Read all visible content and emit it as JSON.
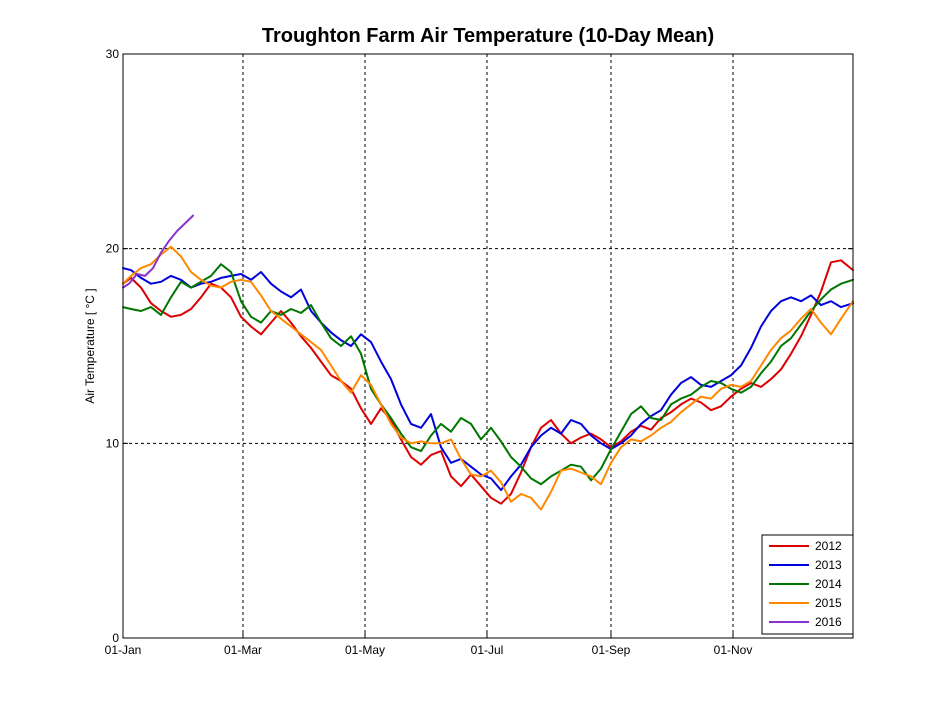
{
  "chart_data": {
    "type": "line",
    "title": "Troughton Farm Air Temperature (10-Day Mean)",
    "xlabel": "",
    "ylabel": "Air Temperature  [ °C ]",
    "ylim": [
      0,
      30
    ],
    "yticks": [
      0,
      10,
      20,
      30
    ],
    "xlim_day": [
      1,
      366
    ],
    "xticks": [
      {
        "day": 1,
        "label": "01-Jan"
      },
      {
        "day": 61,
        "label": "01-Mar"
      },
      {
        "day": 122,
        "label": "01-May"
      },
      {
        "day": 183,
        "label": "01-Jul"
      },
      {
        "day": 245,
        "label": "01-Sep"
      },
      {
        "day": 306,
        "label": "01-Nov"
      }
    ],
    "grid": true,
    "legend_position": "bottom-right",
    "series": [
      {
        "name": "2012",
        "color": "#dd0000",
        "day": [
          1,
          5,
          10,
          15,
          20,
          25,
          30,
          35,
          40,
          45,
          50,
          55,
          60,
          65,
          70,
          75,
          80,
          85,
          90,
          95,
          100,
          105,
          110,
          115,
          120,
          125,
          130,
          135,
          140,
          145,
          150,
          155,
          160,
          165,
          170,
          175,
          180,
          185,
          190,
          195,
          200,
          205,
          210,
          215,
          220,
          225,
          230,
          235,
          240,
          245,
          250,
          255,
          260,
          265,
          270,
          275,
          280,
          285,
          290,
          295,
          300,
          305,
          310,
          315,
          320,
          325,
          330,
          335,
          340,
          345,
          350,
          355,
          360,
          366
        ],
        "temp": [
          18.2,
          18.5,
          18.0,
          17.2,
          16.8,
          16.5,
          16.6,
          16.9,
          17.5,
          18.2,
          18.0,
          17.5,
          16.5,
          16.0,
          15.6,
          16.2,
          16.8,
          16.2,
          15.5,
          14.9,
          14.2,
          13.5,
          13.2,
          12.8,
          11.8,
          11.0,
          11.8,
          11.2,
          10.2,
          9.3,
          8.9,
          9.4,
          9.6,
          8.3,
          7.8,
          8.4,
          7.8,
          7.2,
          6.9,
          7.4,
          8.5,
          9.8,
          10.8,
          11.2,
          10.5,
          10.0,
          10.3,
          10.5,
          10.2,
          9.8,
          10.1,
          10.6,
          10.9,
          10.7,
          11.3,
          11.6,
          12.0,
          12.3,
          12.1,
          11.7,
          11.9,
          12.4,
          12.8,
          13.1,
          12.9,
          13.3,
          13.8,
          14.6,
          15.5,
          16.6,
          17.8,
          19.3,
          19.4,
          18.9
        ]
      },
      {
        "name": "2013",
        "color": "#0000dd",
        "day": [
          1,
          5,
          10,
          15,
          20,
          25,
          30,
          35,
          40,
          45,
          50,
          55,
          60,
          65,
          70,
          75,
          80,
          85,
          90,
          95,
          100,
          105,
          110,
          115,
          120,
          125,
          130,
          135,
          140,
          145,
          150,
          155,
          160,
          165,
          170,
          175,
          180,
          185,
          190,
          195,
          200,
          205,
          210,
          215,
          220,
          225,
          230,
          235,
          240,
          245,
          250,
          255,
          260,
          265,
          270,
          275,
          280,
          285,
          290,
          295,
          300,
          305,
          310,
          315,
          320,
          325,
          330,
          335,
          340,
          345,
          350,
          355,
          360,
          366
        ],
        "temp": [
          19.0,
          18.9,
          18.5,
          18.2,
          18.3,
          18.6,
          18.4,
          18.0,
          18.2,
          18.3,
          18.5,
          18.6,
          18.7,
          18.4,
          18.8,
          18.2,
          17.8,
          17.5,
          17.9,
          16.8,
          16.2,
          15.7,
          15.3,
          15.0,
          15.6,
          15.2,
          14.2,
          13.3,
          12.0,
          11.0,
          10.8,
          11.5,
          9.8,
          9.0,
          9.2,
          8.8,
          8.4,
          8.2,
          7.6,
          8.3,
          8.9,
          9.8,
          10.4,
          10.8,
          10.5,
          11.2,
          11.0,
          10.4,
          10.0,
          9.7,
          10.0,
          10.4,
          11.0,
          11.4,
          11.7,
          12.5,
          13.1,
          13.4,
          13.0,
          12.9,
          13.2,
          13.5,
          14.0,
          14.9,
          16.0,
          16.8,
          17.3,
          17.5,
          17.3,
          17.6,
          17.1,
          17.3,
          17.0,
          17.2
        ]
      },
      {
        "name": "2014",
        "color": "#007700",
        "day": [
          1,
          5,
          10,
          15,
          20,
          25,
          30,
          35,
          40,
          45,
          50,
          55,
          60,
          65,
          70,
          75,
          80,
          85,
          90,
          95,
          100,
          105,
          110,
          115,
          120,
          125,
          130,
          135,
          140,
          145,
          150,
          155,
          160,
          165,
          170,
          175,
          180,
          185,
          190,
          195,
          200,
          205,
          210,
          215,
          220,
          225,
          230,
          235,
          240,
          245,
          250,
          255,
          260,
          265,
          270,
          275,
          280,
          285,
          290,
          295,
          300,
          305,
          310,
          315,
          320,
          325,
          330,
          335,
          340,
          345,
          350,
          355,
          360,
          366
        ],
        "temp": [
          17.0,
          16.9,
          16.8,
          17.0,
          16.6,
          17.5,
          18.3,
          18.0,
          18.3,
          18.6,
          19.2,
          18.8,
          17.3,
          16.5,
          16.2,
          16.8,
          16.6,
          16.9,
          16.7,
          17.1,
          16.2,
          15.4,
          15.0,
          15.5,
          14.6,
          12.8,
          12.0,
          11.3,
          10.5,
          9.8,
          9.6,
          10.4,
          11.0,
          10.6,
          11.3,
          11.0,
          10.2,
          10.8,
          10.1,
          9.3,
          8.8,
          8.2,
          7.9,
          8.3,
          8.6,
          8.9,
          8.8,
          8.1,
          8.7,
          9.7,
          10.6,
          11.5,
          11.9,
          11.3,
          11.2,
          12.0,
          12.3,
          12.5,
          12.9,
          13.2,
          13.1,
          12.8,
          12.6,
          12.9,
          13.6,
          14.2,
          15.0,
          15.4,
          16.1,
          16.8,
          17.4,
          17.9,
          18.2,
          18.4
        ]
      },
      {
        "name": "2015",
        "color": "#ff8800",
        "day": [
          1,
          5,
          10,
          15,
          20,
          25,
          30,
          35,
          40,
          45,
          50,
          55,
          60,
          65,
          70,
          75,
          80,
          85,
          90,
          95,
          100,
          105,
          110,
          115,
          120,
          125,
          130,
          135,
          140,
          145,
          150,
          155,
          160,
          165,
          170,
          175,
          180,
          185,
          190,
          195,
          200,
          205,
          210,
          215,
          220,
          225,
          230,
          235,
          240,
          245,
          250,
          255,
          260,
          265,
          270,
          275,
          280,
          285,
          290,
          295,
          300,
          305,
          310,
          315,
          320,
          325,
          330,
          335,
          340,
          345,
          350,
          355,
          360,
          366
        ],
        "temp": [
          18.2,
          18.6,
          19.0,
          19.2,
          19.7,
          20.1,
          19.6,
          18.8,
          18.4,
          18.1,
          18.0,
          18.3,
          18.4,
          18.3,
          17.6,
          16.8,
          16.4,
          16.0,
          15.6,
          15.2,
          14.8,
          14.0,
          13.2,
          12.6,
          13.5,
          13.0,
          12.0,
          11.0,
          10.3,
          10.0,
          10.1,
          10.0,
          10.0,
          10.2,
          9.2,
          8.4,
          8.3,
          8.6,
          8.0,
          7.0,
          7.4,
          7.2,
          6.6,
          7.5,
          8.6,
          8.7,
          8.5,
          8.3,
          7.9,
          9.0,
          9.8,
          10.2,
          10.1,
          10.4,
          10.8,
          11.1,
          11.6,
          12.0,
          12.4,
          12.3,
          12.8,
          13.0,
          12.9,
          13.2,
          14.0,
          14.8,
          15.4,
          15.8,
          16.4,
          16.9,
          16.2,
          15.6,
          16.4,
          17.3
        ]
      },
      {
        "name": "2016",
        "color": "#8833cc",
        "day": [
          1,
          4,
          8,
          12,
          16,
          20,
          24,
          28,
          32,
          36
        ],
        "temp": [
          18.0,
          18.2,
          18.7,
          18.6,
          19.0,
          19.8,
          20.4,
          20.9,
          21.3,
          21.7
        ]
      }
    ]
  }
}
